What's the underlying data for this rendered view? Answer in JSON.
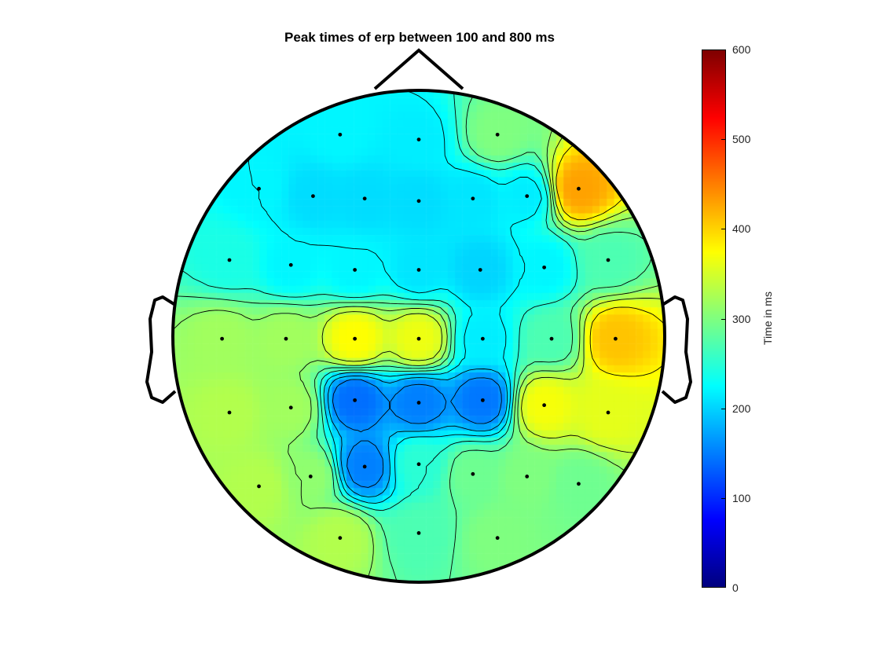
{
  "chart_data": {
    "type": "heatmap",
    "subtype": "eeg-topographic-map",
    "title": "Peak times of erp between 100 and 800 ms",
    "colorbar": {
      "label": "Time in ms",
      "range": [
        0,
        600
      ],
      "ticks": [
        0,
        100,
        200,
        300,
        400,
        500,
        600
      ],
      "colormap": "jet",
      "placement": "right"
    },
    "contours": true,
    "electrodes": [
      {
        "x": -0.32,
        "y": 0.82,
        "value": 220
      },
      {
        "x": 0.0,
        "y": 0.8,
        "value": 215
      },
      {
        "x": 0.32,
        "y": 0.82,
        "value": 300
      },
      {
        "x": -0.65,
        "y": 0.6,
        "value": 220
      },
      {
        "x": -0.43,
        "y": 0.57,
        "value": 205
      },
      {
        "x": -0.22,
        "y": 0.56,
        "value": 205
      },
      {
        "x": 0.0,
        "y": 0.55,
        "value": 205
      },
      {
        "x": 0.22,
        "y": 0.56,
        "value": 210
      },
      {
        "x": 0.44,
        "y": 0.57,
        "value": 215
      },
      {
        "x": 0.65,
        "y": 0.6,
        "value": 430
      },
      {
        "x": -0.77,
        "y": 0.31,
        "value": 240
      },
      {
        "x": -0.52,
        "y": 0.29,
        "value": 220
      },
      {
        "x": -0.26,
        "y": 0.27,
        "value": 220
      },
      {
        "x": 0.0,
        "y": 0.27,
        "value": 210
      },
      {
        "x": 0.25,
        "y": 0.27,
        "value": 200
      },
      {
        "x": 0.51,
        "y": 0.28,
        "value": 220
      },
      {
        "x": 0.77,
        "y": 0.31,
        "value": 270
      },
      {
        "x": -0.8,
        "y": -0.01,
        "value": 320
      },
      {
        "x": -0.54,
        "y": -0.01,
        "value": 320
      },
      {
        "x": -0.26,
        "y": -0.01,
        "value": 375
      },
      {
        "x": 0.0,
        "y": -0.01,
        "value": 365
      },
      {
        "x": 0.26,
        "y": -0.01,
        "value": 215
      },
      {
        "x": 0.54,
        "y": -0.01,
        "value": 270
      },
      {
        "x": 0.8,
        "y": -0.01,
        "value": 410
      },
      {
        "x": -0.77,
        "y": -0.31,
        "value": 330
      },
      {
        "x": -0.52,
        "y": -0.29,
        "value": 320
      },
      {
        "x": -0.26,
        "y": -0.26,
        "value": 140
      },
      {
        "x": 0.0,
        "y": -0.27,
        "value": 150
      },
      {
        "x": 0.26,
        "y": -0.26,
        "value": 145
      },
      {
        "x": 0.51,
        "y": -0.28,
        "value": 370
      },
      {
        "x": 0.77,
        "y": -0.31,
        "value": 360
      },
      {
        "x": -0.65,
        "y": -0.61,
        "value": 330
      },
      {
        "x": -0.44,
        "y": -0.57,
        "value": 310
      },
      {
        "x": -0.22,
        "y": -0.53,
        "value": 150
      },
      {
        "x": 0.0,
        "y": -0.52,
        "value": 250
      },
      {
        "x": 0.22,
        "y": -0.56,
        "value": 290
      },
      {
        "x": 0.44,
        "y": -0.57,
        "value": 300
      },
      {
        "x": 0.65,
        "y": -0.6,
        "value": 290
      },
      {
        "x": -0.32,
        "y": -0.82,
        "value": 330
      },
      {
        "x": 0.0,
        "y": -0.8,
        "value": 270
      },
      {
        "x": 0.32,
        "y": -0.82,
        "value": 300
      }
    ]
  }
}
